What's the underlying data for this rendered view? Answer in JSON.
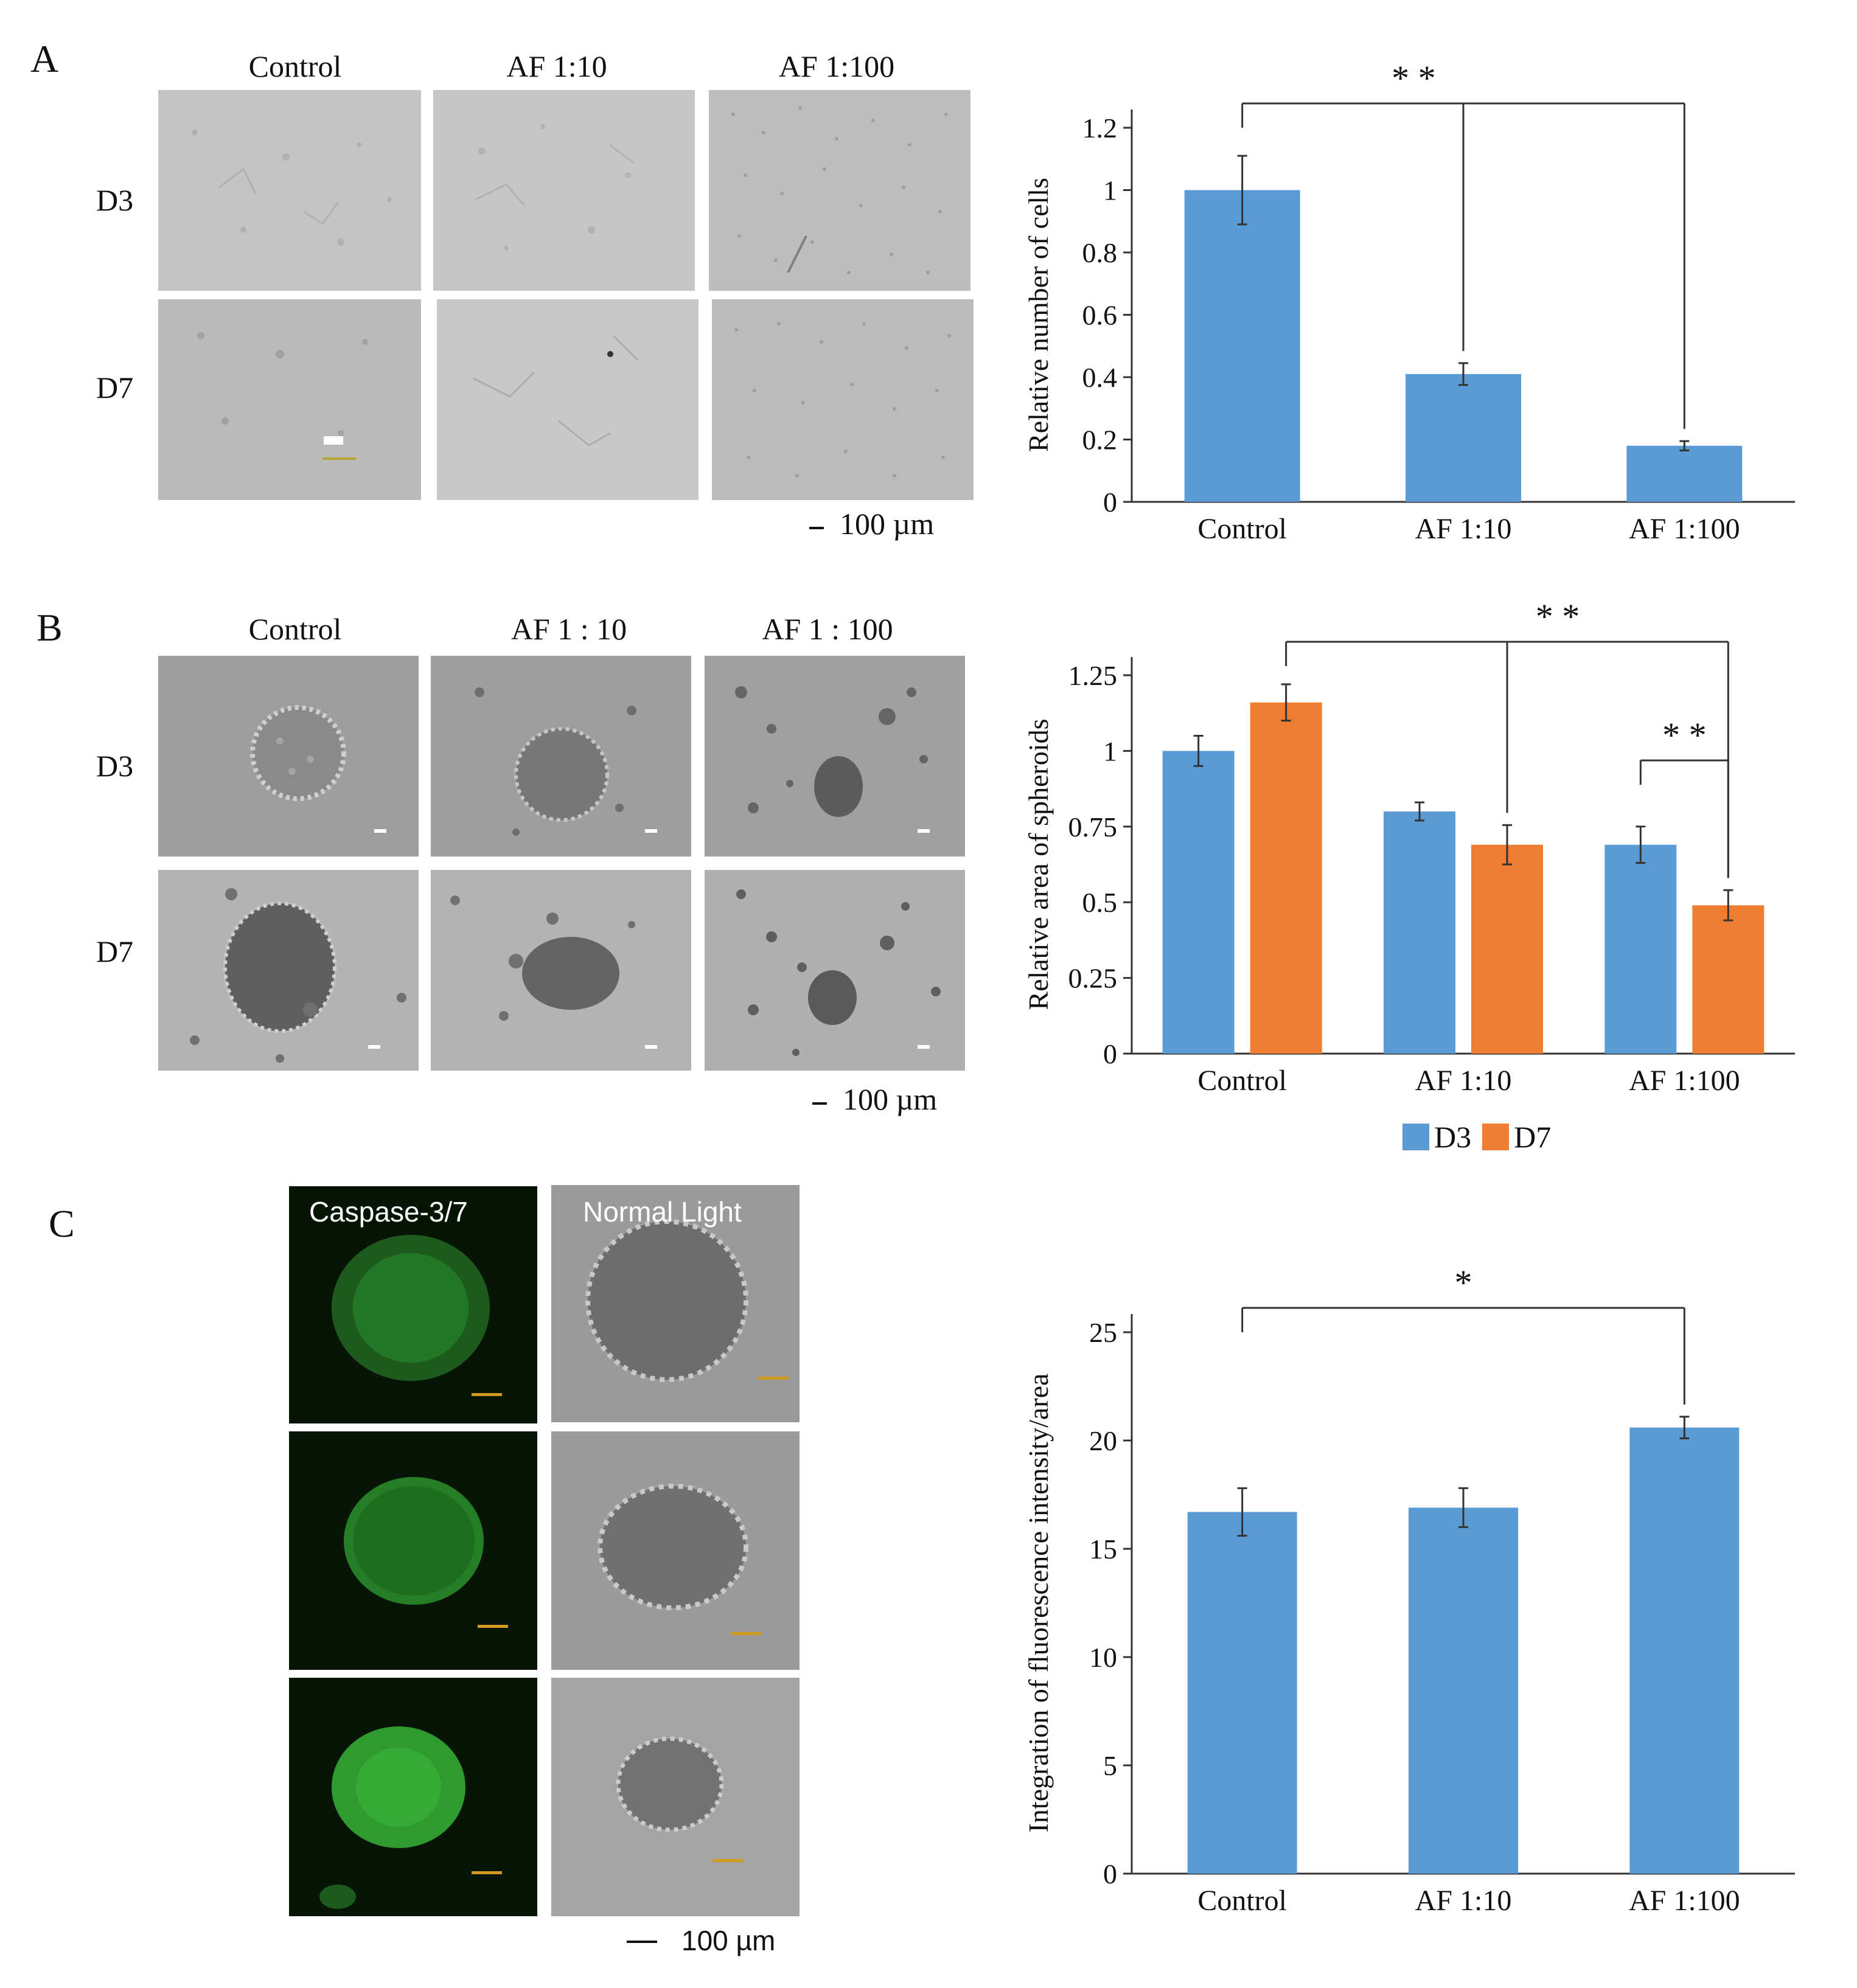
{
  "panel_a": {
    "label": "A",
    "col_labels": [
      "Control",
      "AF 1:10",
      "AF 1:100"
    ],
    "row_labels": [
      "D3",
      "D7"
    ],
    "scale_bar": "100 µm"
  },
  "panel_b": {
    "label": "B",
    "col_labels": [
      "Control",
      "AF 1 : 10",
      "AF 1 : 100"
    ],
    "row_labels": [
      "D3",
      "D7"
    ],
    "scale_bar": "100 µm"
  },
  "panel_c": {
    "label": "C",
    "image_titles": [
      "Caspase-3/7",
      "Normal Light"
    ],
    "scale_bar": "100 µm"
  },
  "chart_data": [
    {
      "type": "bar",
      "panel": "A",
      "categories": [
        "Control",
        "AF 1:10",
        "AF 1:100"
      ],
      "series": [
        {
          "values": [
            1.0,
            0.41,
            0.18
          ],
          "errors": [
            0.11,
            0.035,
            0.015
          ],
          "color": "#5b9bd5"
        }
      ],
      "ylabel": "Relative number of cells",
      "ylim": [
        0,
        1.2
      ],
      "yticks": [
        "0",
        "0.2",
        "0.4",
        "0.6",
        "0.8",
        "1",
        "1.2"
      ],
      "significance": [
        {
          "label": "* *",
          "from": "Control",
          "to": [
            "AF 1:10",
            "AF 1:100"
          ]
        }
      ]
    },
    {
      "type": "bar",
      "panel": "B",
      "categories": [
        "Control",
        "AF 1:10",
        "AF 1:100"
      ],
      "series": [
        {
          "name": "D3",
          "values": [
            1.0,
            0.8,
            0.69
          ],
          "errors": [
            0.05,
            0.03,
            0.06
          ],
          "color": "#5b9bd5"
        },
        {
          "name": "D7",
          "values": [
            1.16,
            0.69,
            0.49
          ],
          "errors": [
            0.06,
            0.065,
            0.05
          ],
          "color": "#ed7d31"
        }
      ],
      "ylabel": "Relative area of spheroids",
      "ylim": [
        0,
        1.25
      ],
      "yticks": [
        "0",
        "0.25",
        "0.5",
        "0.75",
        "1",
        "1.25"
      ],
      "legend": "bottom",
      "significance": [
        {
          "label": "* *",
          "from": "Control D7",
          "to": [
            "AF 1:10 D7",
            "AF 1:100 D7"
          ]
        },
        {
          "label": "* *",
          "from": "AF 1:100 D3",
          "to": [
            "AF 1:100 D7"
          ]
        }
      ]
    },
    {
      "type": "bar",
      "panel": "C",
      "categories": [
        "Control",
        "AF 1:10",
        "AF 1:100"
      ],
      "series": [
        {
          "values": [
            16.7,
            16.9,
            20.6
          ],
          "errors": [
            1.1,
            0.9,
            0.5
          ],
          "color": "#5b9bd5"
        }
      ],
      "ylabel": "Integration of fluorescence intensity/area",
      "ylim": [
        0,
        25
      ],
      "yticks": [
        "0",
        "5",
        "10",
        "15",
        "20",
        "25"
      ],
      "significance": [
        {
          "label": "*",
          "from": "Control",
          "to": [
            "AF 1:100"
          ]
        }
      ]
    }
  ]
}
